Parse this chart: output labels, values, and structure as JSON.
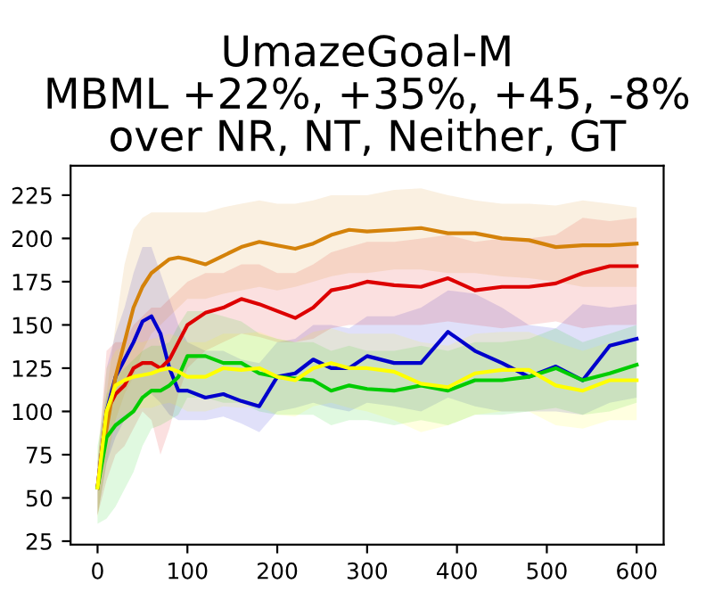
{
  "chart_data": {
    "type": "line",
    "title": "UmazeGoal-M\nMBML +22%, +35%, +45, -8%\nover NR, NT, Neither, GT",
    "x": [
      0,
      10,
      20,
      30,
      40,
      50,
      60,
      70,
      80,
      90,
      100,
      120,
      140,
      160,
      180,
      200,
      220,
      240,
      260,
      280,
      300,
      330,
      360,
      390,
      420,
      450,
      480,
      510,
      540,
      570,
      600
    ],
    "series": [
      {
        "color": "#0000cc",
        "values": [
          56,
          100,
          120,
          130,
          140,
          152,
          155,
          145,
          125,
          112,
          112,
          108,
          110,
          106,
          103,
          120,
          122,
          130,
          125,
          125,
          132,
          128,
          128,
          146,
          135,
          128,
          120,
          126,
          118,
          138,
          142
        ],
        "lower": [
          40,
          70,
          85,
          95,
          100,
          110,
          110,
          105,
          98,
          95,
          95,
          95,
          97,
          93,
          88,
          100,
          102,
          105,
          102,
          100,
          105,
          103,
          100,
          108,
          103,
          100,
          100,
          100,
          98,
          105,
          108
        ],
        "upper": [
          70,
          125,
          145,
          160,
          180,
          195,
          195,
          180,
          165,
          150,
          140,
          135,
          135,
          130,
          128,
          140,
          142,
          150,
          150,
          148,
          155,
          155,
          160,
          170,
          168,
          160,
          150,
          148,
          162,
          160,
          162
        ]
      },
      {
        "color": "#dd0000",
        "values": [
          56,
          100,
          110,
          115,
          125,
          128,
          128,
          125,
          130,
          140,
          150,
          157,
          160,
          165,
          162,
          158,
          154,
          160,
          170,
          172,
          175,
          173,
          172,
          177,
          170,
          172,
          172,
          174,
          180,
          184,
          184
        ],
        "lower": [
          40,
          60,
          75,
          80,
          90,
          100,
          95,
          75,
          90,
          110,
          125,
          135,
          140,
          145,
          143,
          140,
          140,
          142,
          148,
          150,
          150,
          150,
          150,
          152,
          150,
          148,
          150,
          152,
          148,
          150,
          150
        ],
        "upper": [
          70,
          135,
          140,
          140,
          150,
          155,
          160,
          160,
          165,
          170,
          175,
          180,
          180,
          185,
          185,
          180,
          180,
          185,
          192,
          195,
          198,
          198,
          200,
          202,
          198,
          200,
          200,
          202,
          212,
          210,
          212
        ]
      },
      {
        "color": "#d4820a",
        "values": [
          56,
          90,
          120,
          140,
          160,
          172,
          180,
          184,
          188,
          189,
          188,
          185,
          190,
          195,
          198,
          196,
          194,
          197,
          202,
          205,
          204,
          205,
          206,
          203,
          203,
          200,
          199,
          195,
          196,
          196,
          197
        ],
        "lower": [
          40,
          70,
          95,
          110,
          120,
          135,
          145,
          150,
          155,
          160,
          165,
          165,
          168,
          170,
          172,
          170,
          172,
          175,
          178,
          180,
          180,
          182,
          182,
          180,
          180,
          178,
          177,
          175,
          172,
          172,
          172
        ],
        "upper": [
          70,
          110,
          150,
          185,
          205,
          212,
          215,
          215,
          215,
          215,
          215,
          215,
          218,
          220,
          222,
          220,
          220,
          222,
          225,
          225,
          225,
          228,
          229,
          225,
          222,
          220,
          220,
          219,
          222,
          220,
          218
        ]
      },
      {
        "color": "#00cc00",
        "values": [
          56,
          85,
          92,
          96,
          100,
          108,
          112,
          112,
          115,
          120,
          132,
          132,
          128,
          128,
          122,
          120,
          119,
          118,
          112,
          115,
          113,
          112,
          115,
          112,
          118,
          118,
          120,
          125,
          118,
          122,
          127
        ],
        "lower": [
          35,
          38,
          45,
          55,
          65,
          80,
          90,
          92,
          95,
          98,
          108,
          108,
          105,
          105,
          100,
          98,
          98,
          98,
          92,
          95,
          95,
          92,
          95,
          92,
          98,
          98,
          100,
          102,
          98,
          100,
          105
        ],
        "upper": [
          80,
          110,
          120,
          125,
          130,
          135,
          138,
          138,
          140,
          150,
          158,
          158,
          155,
          152,
          145,
          142,
          140,
          140,
          135,
          138,
          135,
          135,
          138,
          135,
          140,
          140,
          142,
          148,
          140,
          145,
          150
        ]
      },
      {
        "color": "#ffff00",
        "values": [
          56,
          100,
          115,
          118,
          120,
          121,
          122,
          124,
          125,
          123,
          120,
          120,
          125,
          124,
          125,
          120,
          118,
          125,
          128,
          125,
          125,
          123,
          116,
          114,
          122,
          124,
          124,
          115,
          112,
          118,
          118
        ],
        "lower": [
          38,
          75,
          95,
          98,
          100,
          102,
          102,
          104,
          105,
          103,
          100,
          100,
          103,
          102,
          103,
          98,
          97,
          103,
          105,
          102,
          100,
          95,
          88,
          92,
          98,
          100,
          100,
          92,
          90,
          95,
          95
        ],
        "upper": [
          75,
          125,
          135,
          138,
          140,
          140,
          142,
          143,
          145,
          143,
          140,
          140,
          145,
          145,
          146,
          142,
          140,
          146,
          148,
          145,
          145,
          145,
          140,
          138,
          145,
          146,
          146,
          140,
          135,
          140,
          140
        ]
      }
    ],
    "xlim": [
      -30,
      630
    ],
    "ylim": [
      23,
      242
    ],
    "xticks": [
      0,
      100,
      200,
      300,
      400,
      500,
      600
    ],
    "yticks": [
      25,
      50,
      75,
      100,
      125,
      150,
      175,
      200,
      225
    ]
  }
}
